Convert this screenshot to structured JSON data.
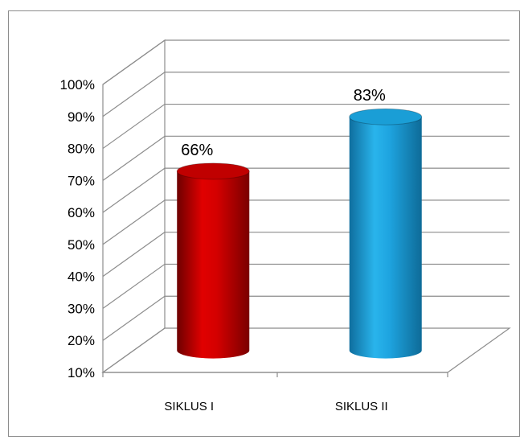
{
  "chart_data": {
    "type": "bar",
    "style": "3d-cylinder",
    "categories": [
      "SIKLUS I",
      "SIKLUS II"
    ],
    "values": [
      66,
      83
    ],
    "value_labels": [
      "66%",
      "83%"
    ],
    "bar_colors": [
      "#c00000",
      "#1a9ed6"
    ],
    "yticks": [
      "10%",
      "20%",
      "30%",
      "40%",
      "50%",
      "60%",
      "70%",
      "80%",
      "90%",
      "100%"
    ],
    "ylim": [
      10,
      100
    ],
    "grid": true,
    "legend": "none",
    "title": "",
    "xlabel": "",
    "ylabel": ""
  }
}
